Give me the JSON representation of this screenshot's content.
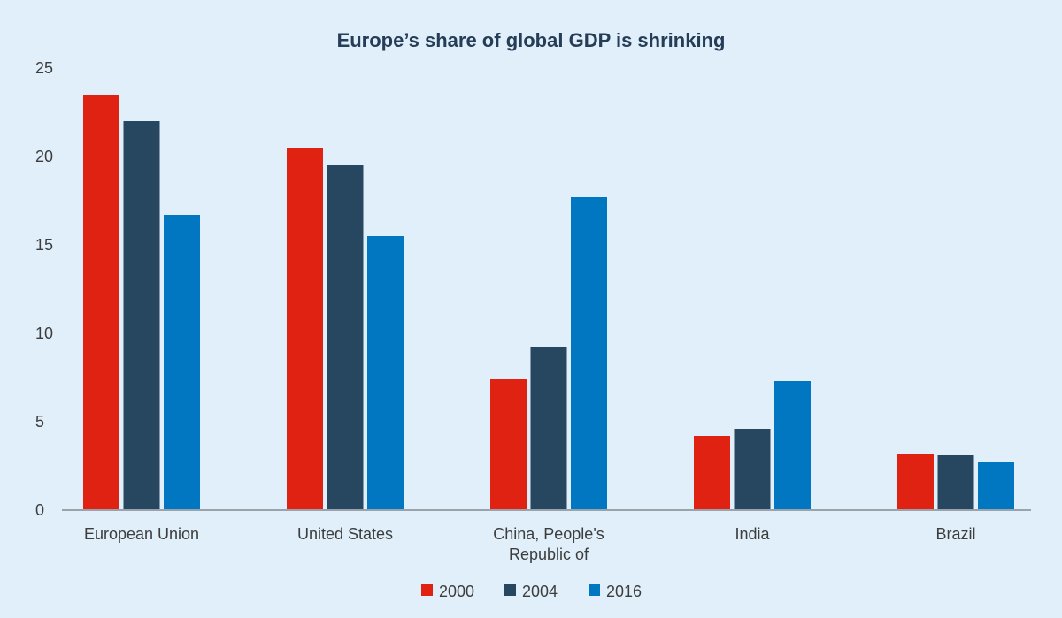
{
  "chart_data": {
    "type": "bar",
    "title": "Europe’s share of global GDP is shrinking",
    "xlabel": "",
    "ylabel": "",
    "ylim": [
      0,
      25
    ],
    "yticks": [
      0,
      5,
      10,
      15,
      20,
      25
    ],
    "categories": [
      [
        "European Union"
      ],
      [
        "United States"
      ],
      [
        "China, People's",
        "Republic of"
      ],
      [
        "India"
      ],
      [
        "Brazil"
      ]
    ],
    "series": [
      {
        "name": "2000",
        "color": "#e02213",
        "values": [
          23.5,
          20.5,
          7.4,
          4.2,
          3.2
        ]
      },
      {
        "name": "2004",
        "color": "#27465f",
        "values": [
          22.0,
          19.5,
          9.2,
          4.6,
          3.1
        ]
      },
      {
        "name": "2016",
        "color": "#0077c0",
        "values": [
          16.7,
          15.5,
          17.7,
          7.3,
          2.7
        ]
      }
    ],
    "grid": false,
    "legend_position": "bottom-center",
    "colors": {
      "background": "#e0eff9",
      "axis": "#9aa3ab",
      "title": "#263d57",
      "text": "#3d3d3d"
    }
  }
}
